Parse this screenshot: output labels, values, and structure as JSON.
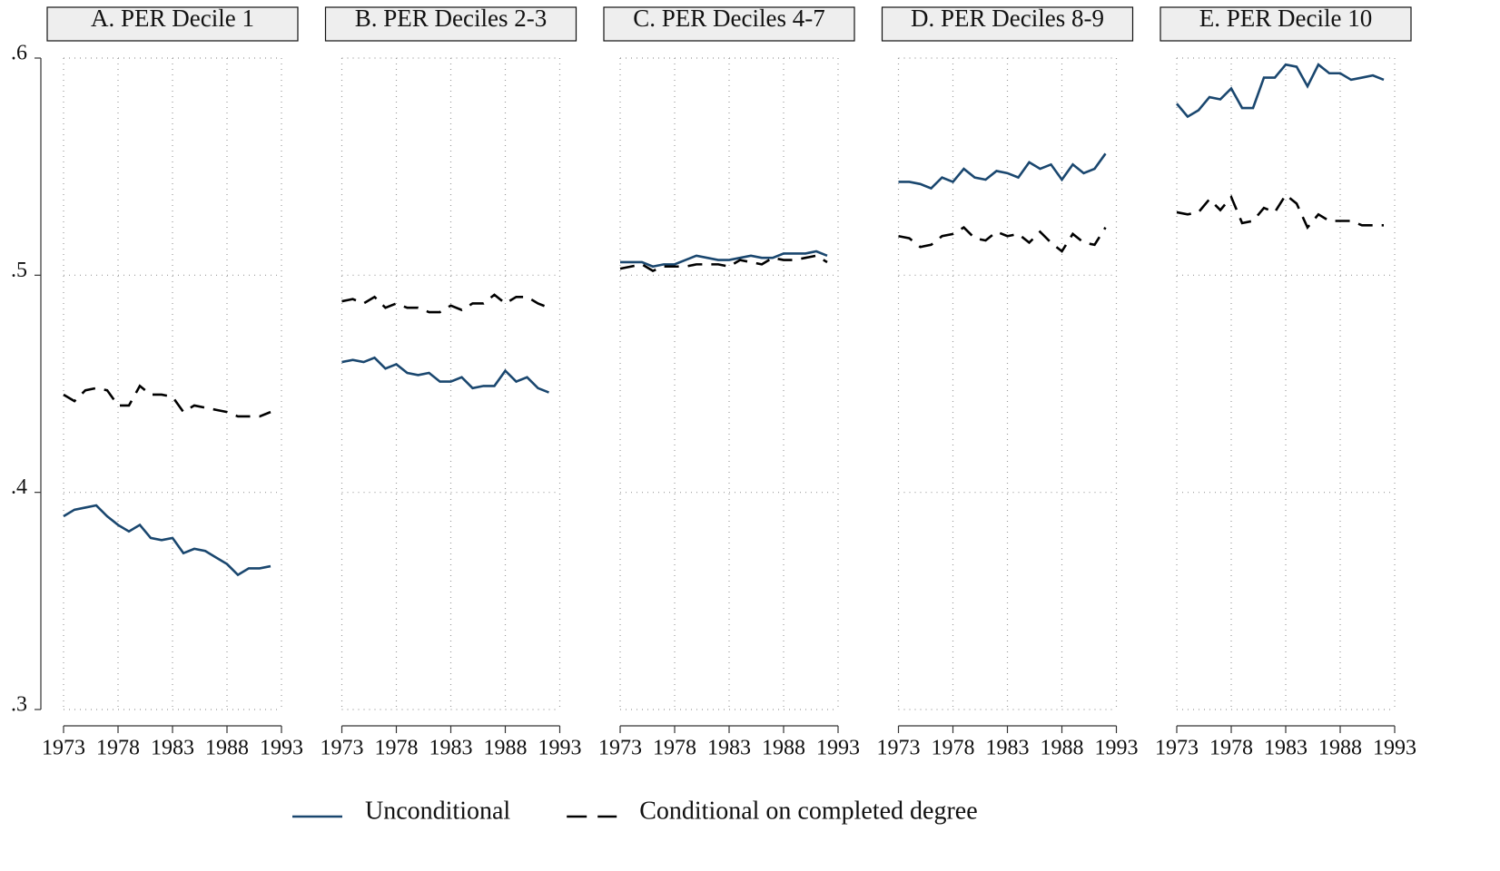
{
  "chart_data": [
    {
      "type": "line",
      "title": "A. PER Decile 1",
      "x": [
        1973,
        1974,
        1975,
        1976,
        1977,
        1978,
        1979,
        1980,
        1981,
        1982,
        1983,
        1984,
        1985,
        1986,
        1987,
        1988,
        1989,
        1990,
        1991,
        1992
      ],
      "xlim": [
        1973,
        1993
      ],
      "xticks": [
        1973,
        1978,
        1983,
        1988,
        1993
      ],
      "ylim": [
        0.3,
        0.6
      ],
      "yticks": [
        {
          "value": 0.3,
          "label": ".3"
        },
        {
          "value": 0.4,
          "label": ".4"
        },
        {
          "value": 0.5,
          "label": ".5"
        },
        {
          "value": 0.6,
          "label": ".6"
        }
      ],
      "grid": true,
      "series": [
        {
          "name": "Unconditional",
          "color": "#1a476f",
          "linestyle": "solid",
          "values": [
            0.389,
            0.392,
            0.393,
            0.394,
            0.389,
            0.385,
            0.382,
            0.385,
            0.379,
            0.378,
            0.379,
            0.372,
            0.374,
            0.373,
            0.37,
            0.367,
            0.362,
            0.365,
            0.365,
            0.366
          ]
        },
        {
          "name": "Conditional on completed degree",
          "color": "#000000",
          "linestyle": "dashed",
          "values": [
            0.445,
            0.442,
            0.447,
            0.448,
            0.447,
            0.44,
            0.44,
            0.449,
            0.445,
            0.445,
            0.444,
            0.437,
            0.44,
            0.439,
            0.438,
            0.437,
            0.435,
            0.435,
            0.435,
            0.437
          ]
        }
      ]
    },
    {
      "type": "line",
      "title": "B. PER Deciles 2-3",
      "x": [
        1973,
        1974,
        1975,
        1976,
        1977,
        1978,
        1979,
        1980,
        1981,
        1982,
        1983,
        1984,
        1985,
        1986,
        1987,
        1988,
        1989,
        1990,
        1991,
        1992
      ],
      "xlim": [
        1973,
        1993
      ],
      "xticks": [
        1973,
        1978,
        1983,
        1988,
        1993
      ],
      "ylim": [
        0.3,
        0.6
      ],
      "yticks": [
        {
          "value": 0.3,
          "label": ".3"
        },
        {
          "value": 0.4,
          "label": ".4"
        },
        {
          "value": 0.5,
          "label": ".5"
        },
        {
          "value": 0.6,
          "label": ".6"
        }
      ],
      "grid": true,
      "series": [
        {
          "name": "Unconditional",
          "color": "#1a476f",
          "linestyle": "solid",
          "values": [
            0.46,
            0.461,
            0.46,
            0.462,
            0.457,
            0.459,
            0.455,
            0.454,
            0.455,
            0.451,
            0.451,
            0.453,
            0.448,
            0.449,
            0.449,
            0.456,
            0.451,
            0.453,
            0.448,
            0.446
          ]
        },
        {
          "name": "Conditional on completed degree",
          "color": "#000000",
          "linestyle": "dashed",
          "values": [
            0.488,
            0.489,
            0.487,
            0.49,
            0.485,
            0.487,
            0.485,
            0.485,
            0.483,
            0.483,
            0.486,
            0.484,
            0.487,
            0.487,
            0.491,
            0.487,
            0.49,
            0.49,
            0.487,
            0.485
          ]
        }
      ]
    },
    {
      "type": "line",
      "title": "C. PER Deciles 4-7",
      "x": [
        1973,
        1974,
        1975,
        1976,
        1977,
        1978,
        1979,
        1980,
        1981,
        1982,
        1983,
        1984,
        1985,
        1986,
        1987,
        1988,
        1989,
        1990,
        1991,
        1992
      ],
      "xlim": [
        1973,
        1993
      ],
      "xticks": [
        1973,
        1978,
        1983,
        1988,
        1993
      ],
      "ylim": [
        0.3,
        0.6
      ],
      "yticks": [
        {
          "value": 0.3,
          "label": ".3"
        },
        {
          "value": 0.4,
          "label": ".4"
        },
        {
          "value": 0.5,
          "label": ".5"
        },
        {
          "value": 0.6,
          "label": ".6"
        }
      ],
      "grid": true,
      "series": [
        {
          "name": "Unconditional",
          "color": "#1a476f",
          "linestyle": "solid",
          "values": [
            0.506,
            0.506,
            0.506,
            0.504,
            0.505,
            0.505,
            0.507,
            0.509,
            0.508,
            0.507,
            0.507,
            0.508,
            0.509,
            0.508,
            0.508,
            0.51,
            0.51,
            0.51,
            0.511,
            0.509
          ]
        },
        {
          "name": "Conditional on completed degree",
          "color": "#000000",
          "linestyle": "dashed",
          "values": [
            0.503,
            0.504,
            0.505,
            0.502,
            0.504,
            0.504,
            0.504,
            0.505,
            0.505,
            0.505,
            0.504,
            0.507,
            0.506,
            0.505,
            0.508,
            0.507,
            0.507,
            0.508,
            0.509,
            0.506
          ]
        }
      ]
    },
    {
      "type": "line",
      "title": "D. PER Deciles 8-9",
      "x": [
        1973,
        1974,
        1975,
        1976,
        1977,
        1978,
        1979,
        1980,
        1981,
        1982,
        1983,
        1984,
        1985,
        1986,
        1987,
        1988,
        1989,
        1990,
        1991,
        1992
      ],
      "xlim": [
        1973,
        1993
      ],
      "xticks": [
        1973,
        1978,
        1983,
        1988,
        1993
      ],
      "ylim": [
        0.3,
        0.6
      ],
      "yticks": [
        {
          "value": 0.3,
          "label": ".3"
        },
        {
          "value": 0.4,
          "label": ".4"
        },
        {
          "value": 0.5,
          "label": ".5"
        },
        {
          "value": 0.6,
          "label": ".6"
        }
      ],
      "grid": true,
      "series": [
        {
          "name": "Unconditional",
          "color": "#1a476f",
          "linestyle": "solid",
          "values": [
            0.543,
            0.543,
            0.542,
            0.54,
            0.545,
            0.543,
            0.549,
            0.545,
            0.544,
            0.548,
            0.547,
            0.545,
            0.552,
            0.549,
            0.551,
            0.544,
            0.551,
            0.547,
            0.549,
            0.556
          ]
        },
        {
          "name": "Conditional on completed degree",
          "color": "#000000",
          "linestyle": "dashed",
          "values": [
            0.518,
            0.517,
            0.513,
            0.514,
            0.518,
            0.519,
            0.522,
            0.517,
            0.516,
            0.52,
            0.518,
            0.519,
            0.515,
            0.52,
            0.515,
            0.511,
            0.519,
            0.515,
            0.514,
            0.522
          ]
        }
      ]
    },
    {
      "type": "line",
      "title": "E. PER Decile 10",
      "x": [
        1973,
        1974,
        1975,
        1976,
        1977,
        1978,
        1979,
        1980,
        1981,
        1982,
        1983,
        1984,
        1985,
        1986,
        1987,
        1988,
        1989,
        1990,
        1991,
        1992
      ],
      "xlim": [
        1973,
        1993
      ],
      "xticks": [
        1973,
        1978,
        1983,
        1988,
        1993
      ],
      "ylim": [
        0.3,
        0.6
      ],
      "yticks": [
        {
          "value": 0.3,
          "label": ".3"
        },
        {
          "value": 0.4,
          "label": ".4"
        },
        {
          "value": 0.5,
          "label": ".5"
        },
        {
          "value": 0.6,
          "label": ".6"
        }
      ],
      "grid": true,
      "series": [
        {
          "name": "Unconditional",
          "color": "#1a476f",
          "linestyle": "solid",
          "values": [
            0.579,
            0.573,
            0.576,
            0.582,
            0.581,
            0.586,
            0.577,
            0.577,
            0.591,
            0.591,
            0.597,
            0.596,
            0.587,
            0.597,
            0.593,
            0.593,
            0.59,
            0.591,
            0.592,
            0.59
          ]
        },
        {
          "name": "Conditional on completed degree",
          "color": "#000000",
          "linestyle": "dashed",
          "values": [
            0.529,
            0.528,
            0.529,
            0.535,
            0.53,
            0.536,
            0.524,
            0.525,
            0.531,
            0.529,
            0.537,
            0.533,
            0.522,
            0.528,
            0.525,
            0.525,
            0.525,
            0.523,
            0.523,
            0.523
          ]
        }
      ]
    }
  ]
}
